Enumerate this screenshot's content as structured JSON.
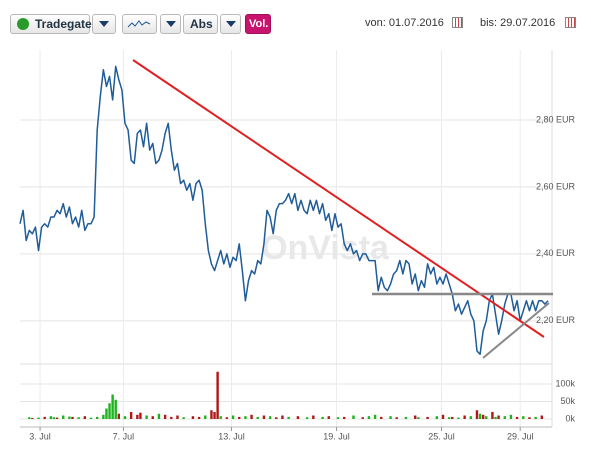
{
  "toolbar": {
    "exchange": "Tradegate",
    "scale": "Abs",
    "volume_button": "Vol.",
    "from": "von: 01.07.2016",
    "to": "bis: 29.07.2016"
  },
  "chart_data": {
    "type": "line",
    "watermark": "OnVista",
    "grid": true,
    "series": [
      {
        "color": "#1f5c99",
        "values": [
          2.49,
          2.53,
          2.44,
          2.47,
          2.46,
          2.48,
          2.41,
          2.48,
          2.49,
          2.48,
          2.51,
          2.51,
          2.53,
          2.52,
          2.55,
          2.51,
          2.54,
          2.49,
          2.51,
          2.48,
          2.53,
          2.47,
          2.49,
          2.49,
          2.51,
          2.77,
          2.87,
          2.95,
          2.9,
          2.93,
          2.86,
          2.96,
          2.92,
          2.89,
          2.79,
          2.77,
          2.68,
          2.67,
          2.76,
          2.77,
          2.72,
          2.79,
          2.71,
          2.73,
          2.67,
          2.68,
          2.71,
          2.76,
          2.79,
          2.71,
          2.65,
          2.67,
          2.61,
          2.62,
          2.59,
          2.61,
          2.56,
          2.61,
          2.62,
          2.59,
          2.49,
          2.41,
          2.37,
          2.35,
          2.38,
          2.41,
          2.37,
          2.4,
          2.36,
          2.39,
          2.38,
          2.43,
          2.35,
          2.26,
          2.32,
          2.35,
          2.34,
          2.38,
          2.37,
          2.43,
          2.53,
          2.51,
          2.46,
          2.53,
          2.55,
          2.55,
          2.56,
          2.58,
          2.55,
          2.58,
          2.53,
          2.56,
          2.53,
          2.52,
          2.56,
          2.53,
          2.56,
          2.52,
          2.55,
          2.5,
          2.52,
          2.47,
          2.52,
          2.48,
          2.49,
          2.43,
          2.41,
          2.43,
          2.4,
          2.41,
          2.38,
          2.4,
          2.4,
          2.38,
          2.38,
          2.38,
          2.29,
          2.33,
          2.3,
          2.29,
          2.31,
          2.34,
          2.35,
          2.38,
          2.34,
          2.38,
          2.37,
          2.31,
          2.34,
          2.29,
          2.32,
          2.3,
          2.37,
          2.34,
          2.36,
          2.31,
          2.33,
          2.31,
          2.34,
          2.31,
          2.28,
          2.23,
          2.25,
          2.22,
          2.24,
          2.26,
          2.22,
          2.2,
          2.11,
          2.1,
          2.17,
          2.2,
          2.26,
          2.28,
          2.22,
          2.16,
          2.2,
          2.25,
          2.28,
          2.28,
          2.23,
          2.26,
          2.2,
          2.23,
          2.26,
          2.23,
          2.26,
          2.23,
          2.26,
          2.26,
          2.25,
          2.26
        ]
      }
    ],
    "xlim": [
      0,
      171
    ],
    "xticks": [
      {
        "value": 6.5,
        "label": "3. Jul"
      },
      {
        "value": 33.5,
        "label": "7. Jul"
      },
      {
        "value": 68.5,
        "label": "13. Jul"
      },
      {
        "value": 102.5,
        "label": "19. Jul"
      },
      {
        "value": 136.5,
        "label": "25. Jul"
      },
      {
        "value": 162,
        "label": "29. Jul"
      }
    ],
    "ylim": [
      2.08,
      3.0
    ],
    "yticks": [
      {
        "value": 2.2,
        "label": "2,20 EUR"
      },
      {
        "value": 2.4,
        "label": "2,40 EUR"
      },
      {
        "value": 2.6,
        "label": "2,60 EUR"
      },
      {
        "value": 2.8,
        "label": "2,80 EUR"
      }
    ],
    "volume": {
      "x": [
        3,
        4,
        6,
        8,
        10,
        11,
        12,
        14,
        16,
        17,
        19,
        21,
        23,
        25,
        27,
        28,
        29,
        30,
        31,
        32,
        34,
        36,
        38,
        39,
        41,
        43,
        45,
        47,
        49,
        51,
        53,
        56,
        58,
        60,
        62,
        63,
        64,
        65,
        67,
        69,
        71,
        73,
        75,
        77,
        79,
        81,
        83,
        85,
        87,
        90,
        93,
        95,
        98,
        100,
        103,
        105,
        108,
        111,
        113,
        115,
        117,
        120,
        122,
        125,
        128,
        129,
        132,
        135,
        137,
        139,
        140,
        142,
        144,
        146,
        148,
        149,
        150,
        151,
        153,
        154,
        155,
        157,
        159,
        161,
        163,
        165,
        167,
        169
      ],
      "values": [
        5000,
        3000,
        4000,
        6000,
        8000,
        5000,
        4000,
        10000,
        7000,
        6000,
        5000,
        8000,
        4000,
        6000,
        12000,
        30000,
        45000,
        70000,
        55000,
        15000,
        8000,
        20000,
        12000,
        18000,
        10000,
        8000,
        15000,
        12000,
        6000,
        10000,
        5000,
        8000,
        6000,
        10000,
        25000,
        20000,
        135000,
        8000,
        5000,
        10000,
        6000,
        8000,
        12000,
        6000,
        10000,
        8000,
        5000,
        10000,
        6000,
        8000,
        5000,
        10000,
        6000,
        8000,
        5000,
        6000,
        10000,
        5000,
        8000,
        12000,
        6000,
        8000,
        5000,
        6000,
        10000,
        5000,
        6000,
        8000,
        12000,
        5000,
        6000,
        4000,
        10000,
        8000,
        25000,
        15000,
        12000,
        8000,
        20000,
        6000,
        10000,
        8000,
        12000,
        6000,
        8000,
        5000,
        6000,
        10000
      ],
      "colors": [
        "#1db31d",
        "#b01818",
        "#1db31d",
        "#b01818",
        "#1db31d",
        "#1db31d",
        "#b01818",
        "#1db31d",
        "#1db31d",
        "#b01818",
        "#1db31d",
        "#b01818",
        "#1db31d",
        "#1db31d",
        "#1db31d",
        "#1db31d",
        "#1db31d",
        "#1db31d",
        "#1db31d",
        "#b01818",
        "#1db31d",
        "#b01818",
        "#b01818",
        "#b01818",
        "#1db31d",
        "#b01818",
        "#1db31d",
        "#b01818",
        "#b01818",
        "#b01818",
        "#1db31d",
        "#b01818",
        "#b01818",
        "#1db31d",
        "#b01818",
        "#b01818",
        "#b01818",
        "#1db31d",
        "#b01818",
        "#1db31d",
        "#b01818",
        "#1db31d",
        "#b01818",
        "#1db31d",
        "#b01818",
        "#1db31d",
        "#b01818",
        "#b01818",
        "#1db31d",
        "#b01818",
        "#1db31d",
        "#b01818",
        "#1db31d",
        "#b01818",
        "#1db31d",
        "#b01818",
        "#1db31d",
        "#b01818",
        "#1db31d",
        "#1db31d",
        "#b01818",
        "#1db31d",
        "#b01818",
        "#1db31d",
        "#b01818",
        "#1db31d",
        "#b01818",
        "#1db31d",
        "#b01818",
        "#1db31d",
        "#b01818",
        "#1db31d",
        "#b01818",
        "#1db31d",
        "#b01818",
        "#1db31d",
        "#b01818",
        "#1db31d",
        "#b01818",
        "#1db31d",
        "#b01818",
        "#1db31d",
        "#1db31d",
        "#b01818",
        "#1db31d",
        "#b01818",
        "#1db31d",
        "#b01818"
      ],
      "ylim": [
        0,
        150000
      ],
      "yticks": [
        {
          "value": 0,
          "label": "0k"
        },
        {
          "value": 50000,
          "label": "50k"
        },
        {
          "value": 100000,
          "label": "100k"
        }
      ]
    }
  }
}
